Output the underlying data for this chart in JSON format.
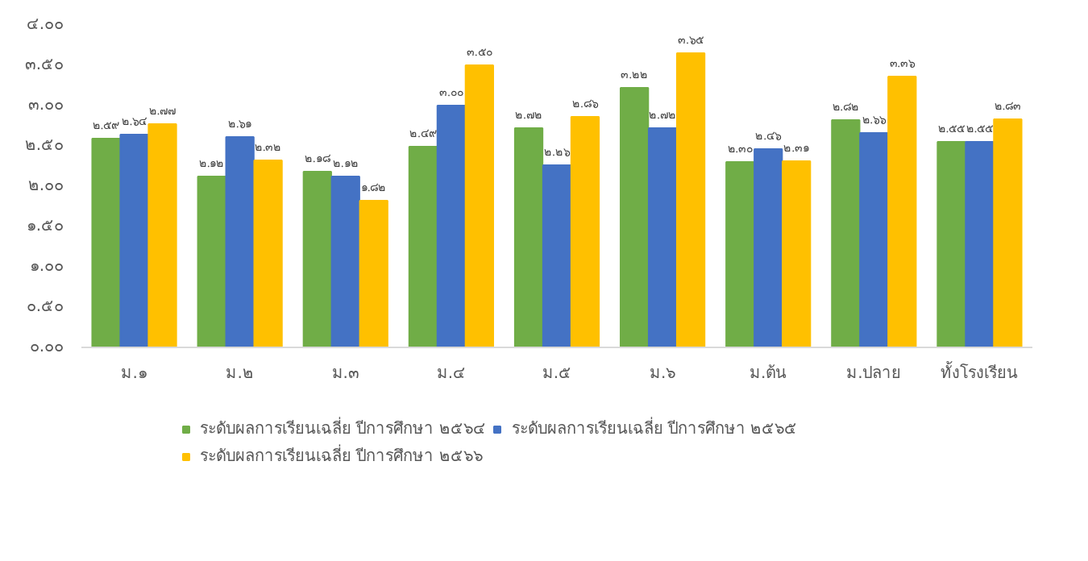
{
  "chart_data": {
    "type": "bar",
    "categories": [
      "ม.๑",
      "ม.๒",
      "ม.๓",
      "ม.๔",
      "ม.๕",
      "ม.๖",
      "ม.ต้น",
      "ม.ปลาย",
      "ทั้งโรงเรียน"
    ],
    "series": [
      {
        "name": "ระดับผลการเรียนเฉลี่ย ปีการศึกษา ๒๕๖๔",
        "color": "#70ad47",
        "values": [
          2.59,
          2.12,
          2.18,
          2.49,
          2.72,
          3.22,
          2.3,
          2.82,
          2.55
        ],
        "value_labels": [
          "๒.๕๙",
          "๒.๑๒",
          "๒.๑๘",
          "๒.๔๙",
          "๒.๗๒",
          "๓.๒๒",
          "๒.๓๐",
          "๒.๘๒",
          "๒.๕๕"
        ]
      },
      {
        "name": "ระดับผลการเรียนเฉลี่ย ปีการศึกษา ๒๕๖๕",
        "color": "#4472c4",
        "values": [
          2.64,
          2.61,
          2.12,
          3.0,
          2.26,
          2.72,
          2.46,
          2.66,
          2.55
        ],
        "value_labels": [
          "๒.๖๔",
          "๒.๖๑",
          "๒.๑๒",
          "๓.๐๐",
          "๒.๒๖",
          "๒.๗๒",
          "๒.๔๖",
          "๒.๖๖",
          "๒.๕๕"
        ]
      },
      {
        "name": "ระดับผลการเรียนเฉลี่ย ปีการศึกษา ๒๕๖๖",
        "color": "#ffc000",
        "values": [
          2.77,
          2.32,
          1.82,
          3.5,
          2.86,
          3.65,
          2.31,
          3.36,
          2.83
        ],
        "value_labels": [
          "๒.๗๗",
          "๒.๓๒",
          "๑.๘๒",
          "๓.๕๐",
          "๒.๘๖",
          "๓.๖๕",
          "๒.๓๑",
          "๓.๓๖",
          "๒.๘๓"
        ]
      }
    ],
    "ylim": [
      0,
      4
    ],
    "yticks": [
      {
        "value": 0,
        "label": "๐.๐๐"
      },
      {
        "value": 0.5,
        "label": "๐.๕๐"
      },
      {
        "value": 1,
        "label": "๑.๐๐"
      },
      {
        "value": 1.5,
        "label": "๑.๕๐"
      },
      {
        "value": 2,
        "label": "๒.๐๐"
      },
      {
        "value": 2.5,
        "label": "๒.๕๐"
      },
      {
        "value": 3,
        "label": "๓.๐๐"
      },
      {
        "value": 3.5,
        "label": "๓.๕๐"
      },
      {
        "value": 4,
        "label": "๔.๐๐"
      }
    ],
    "grid": false,
    "legend": "bottom"
  }
}
